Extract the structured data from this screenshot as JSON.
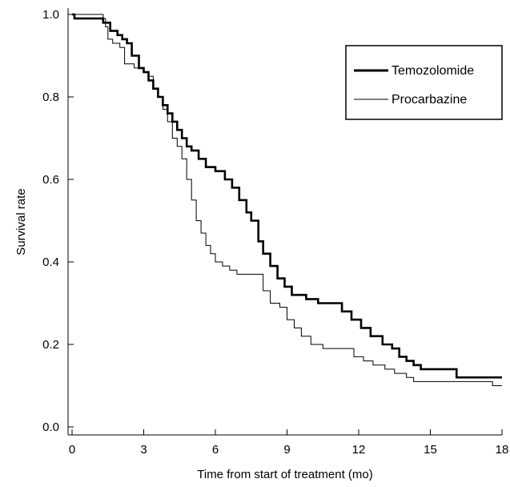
{
  "chart_data": {
    "type": "line",
    "subtype": "step (Kaplan-Meier survival curve)",
    "title": "",
    "xlabel": "Time from start of treatment (mo)",
    "ylabel": "Survival rate",
    "xlim": [
      0,
      18
    ],
    "ylim": [
      0,
      1.0
    ],
    "xticks": [
      "0",
      "3",
      "6",
      "9",
      "12",
      "15",
      "18"
    ],
    "yticks": [
      "0.0",
      "0.2",
      "0.4",
      "0.6",
      "0.8",
      "1.0"
    ],
    "grid": false,
    "legend_position": "top-right",
    "series": [
      {
        "name": "Temozolomide",
        "color": "#000000",
        "style": "thick",
        "points": [
          [
            0,
            1.0
          ],
          [
            0.1,
            0.99
          ],
          [
            1.0,
            0.99
          ],
          [
            1.3,
            0.98
          ],
          [
            1.6,
            0.96
          ],
          [
            1.9,
            0.95
          ],
          [
            2.1,
            0.94
          ],
          [
            2.3,
            0.93
          ],
          [
            2.5,
            0.9
          ],
          [
            2.8,
            0.87
          ],
          [
            3.0,
            0.86
          ],
          [
            3.2,
            0.84
          ],
          [
            3.4,
            0.82
          ],
          [
            3.6,
            0.8
          ],
          [
            3.8,
            0.78
          ],
          [
            4.0,
            0.76
          ],
          [
            4.2,
            0.74
          ],
          [
            4.4,
            0.72
          ],
          [
            4.6,
            0.7
          ],
          [
            4.8,
            0.68
          ],
          [
            5.0,
            0.67
          ],
          [
            5.3,
            0.65
          ],
          [
            5.6,
            0.63
          ],
          [
            6.0,
            0.62
          ],
          [
            6.4,
            0.6
          ],
          [
            6.7,
            0.58
          ],
          [
            7.0,
            0.55
          ],
          [
            7.3,
            0.52
          ],
          [
            7.5,
            0.5
          ],
          [
            7.8,
            0.45
          ],
          [
            8.0,
            0.42
          ],
          [
            8.3,
            0.39
          ],
          [
            8.6,
            0.36
          ],
          [
            8.9,
            0.34
          ],
          [
            9.2,
            0.32
          ],
          [
            9.8,
            0.31
          ],
          [
            10.3,
            0.3
          ],
          [
            11.0,
            0.3
          ],
          [
            11.3,
            0.28
          ],
          [
            11.7,
            0.26
          ],
          [
            12.1,
            0.24
          ],
          [
            12.5,
            0.22
          ],
          [
            13.0,
            0.2
          ],
          [
            13.4,
            0.19
          ],
          [
            13.7,
            0.17
          ],
          [
            14.0,
            0.16
          ],
          [
            14.3,
            0.15
          ],
          [
            14.6,
            0.14
          ],
          [
            16.0,
            0.14
          ],
          [
            16.1,
            0.12
          ],
          [
            18.0,
            0.12
          ]
        ]
      },
      {
        "name": "Procarbazine",
        "color": "#000000",
        "style": "thin",
        "points": [
          [
            0,
            1.0
          ],
          [
            1.3,
            0.99
          ],
          [
            1.4,
            0.97
          ],
          [
            1.5,
            0.94
          ],
          [
            1.7,
            0.93
          ],
          [
            2.0,
            0.92
          ],
          [
            2.2,
            0.88
          ],
          [
            2.6,
            0.87
          ],
          [
            3.0,
            0.86
          ],
          [
            3.2,
            0.85
          ],
          [
            3.4,
            0.82
          ],
          [
            3.6,
            0.8
          ],
          [
            3.8,
            0.77
          ],
          [
            4.0,
            0.74
          ],
          [
            4.2,
            0.7
          ],
          [
            4.4,
            0.68
          ],
          [
            4.6,
            0.65
          ],
          [
            4.8,
            0.6
          ],
          [
            5.0,
            0.55
          ],
          [
            5.2,
            0.5
          ],
          [
            5.4,
            0.47
          ],
          [
            5.6,
            0.44
          ],
          [
            5.8,
            0.42
          ],
          [
            6.0,
            0.4
          ],
          [
            6.3,
            0.39
          ],
          [
            6.6,
            0.38
          ],
          [
            6.9,
            0.37
          ],
          [
            7.5,
            0.37
          ],
          [
            8.0,
            0.33
          ],
          [
            8.3,
            0.3
          ],
          [
            8.7,
            0.29
          ],
          [
            9.0,
            0.26
          ],
          [
            9.3,
            0.24
          ],
          [
            9.6,
            0.22
          ],
          [
            10.0,
            0.2
          ],
          [
            10.5,
            0.19
          ],
          [
            11.3,
            0.19
          ],
          [
            11.8,
            0.17
          ],
          [
            12.2,
            0.16
          ],
          [
            12.6,
            0.15
          ],
          [
            13.1,
            0.14
          ],
          [
            13.5,
            0.13
          ],
          [
            14.0,
            0.12
          ],
          [
            14.3,
            0.11
          ],
          [
            17.5,
            0.11
          ],
          [
            17.6,
            0.1
          ],
          [
            18.0,
            0.1
          ]
        ]
      }
    ]
  }
}
